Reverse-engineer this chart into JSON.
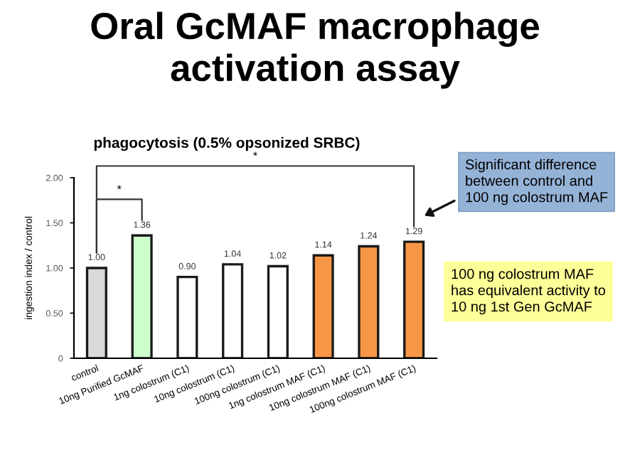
{
  "chart_data": {
    "type": "bar",
    "title": "Oral GcMAF macrophage\nactivation assay",
    "subtitle": "phagocytosis (0.5% opsonized SRBC)",
    "ylabel": "ingestion index / control",
    "categories": [
      "control",
      "10ng Purified GcMAF",
      "1ng colostrum (C1)",
      "10ng colostrum (C1)",
      "100ng colostrum (C1)",
      "1ng colostrum MAF (C1)",
      "10ng colostrum MAF (C1)",
      "100ng colostrum MAF (C1)"
    ],
    "values": [
      1.0,
      1.36,
      0.9,
      1.04,
      1.02,
      1.14,
      1.24,
      1.29
    ],
    "value_labels": [
      "1.00",
      "1.36",
      "0.90",
      "1.04",
      "1.02",
      "1.14",
      "1.24",
      "1.29"
    ],
    "colors": [
      "#d9d9d9",
      "#ccffcc",
      "#ffffff",
      "#ffffff",
      "#ffffff",
      "#f79646",
      "#f79646",
      "#f79646"
    ],
    "ylim": [
      0,
      2.0
    ],
    "yticks": [
      0,
      {
        "value": 0.5,
        "label": "0.50"
      },
      {
        "value": 1.0,
        "label": "1.00"
      },
      {
        "value": 1.5,
        "label": "1.50"
      },
      {
        "value": 2.0,
        "label": "2.00"
      }
    ],
    "grid": false,
    "legend": false,
    "annotations": [
      "*",
      "*",
      "Significant difference\nbetween control and\n100 ng colostrum MAF",
      "100 ng colostrum MAF\nhas equivalent activity to\n10 ng 1st Gen GcMAF"
    ]
  }
}
